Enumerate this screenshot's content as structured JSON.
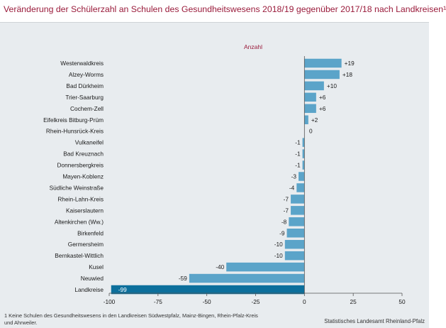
{
  "title": "Veränderung der Schülerzahl an Schulen des Gesundheitswesens 2018/19 gegenüber 2017/18 nach Landkreisen¹",
  "footnote": "1 Keine Schulen des Gesundheitswesens in den Landkreisen Südwestpfalz, Mainz-Bingen, Rhein-Pfalz-Kreis und Ahrweiler.",
  "source": "Statistisches Landesamt Rheinland-Pfalz",
  "colors": {
    "bar": "#5ba4c9",
    "highlight_bar": "#0c6f9c",
    "title": "#9a1b3b",
    "background": "#e8ecef"
  },
  "chart_data": {
    "type": "bar",
    "orientation": "horizontal",
    "series_label": "Anzahl",
    "categories": [
      "Westerwaldkreis",
      "Alzey-Worms",
      "Bad Dürkheim",
      "Trier-Saarburg",
      "Cochem-Zell",
      "Eifelkreis Bitburg-Prüm",
      "Rhein-Hunsrück-Kreis",
      "Vulkaneifel",
      "Bad Kreuznach",
      "Donnersbergkreis",
      "Mayen-Koblenz",
      "Südliche Weinstraße",
      "Rhein-Lahn-Kreis",
      "Kaiserslautern",
      "Altenkirchen (Ww.)",
      "Birkenfeld",
      "Germersheim",
      "Bernkastel-Wittlich",
      "Kusel",
      "Neuwied",
      "Landkreise"
    ],
    "values": [
      19,
      18,
      10,
      6,
      6,
      2,
      0,
      -1,
      -1,
      -1,
      -3,
      -4,
      -7,
      -7,
      -8,
      -9,
      -10,
      -10,
      -40,
      -59,
      -99
    ],
    "value_labels": [
      "+19",
      "+18",
      "+10",
      "+6",
      "+6",
      "+2",
      "0",
      "-1",
      "-1",
      "-1",
      "-3",
      "-4",
      "-7",
      "-7",
      "-8",
      "-9",
      "-10",
      "-10",
      "-40",
      "-59",
      "-99"
    ],
    "highlight": "Landkreise",
    "xlim": [
      -100,
      50
    ],
    "xticks": [
      "-100",
      "-75",
      "-50",
      "-25",
      "0",
      "25",
      "50"
    ],
    "grid": false
  }
}
